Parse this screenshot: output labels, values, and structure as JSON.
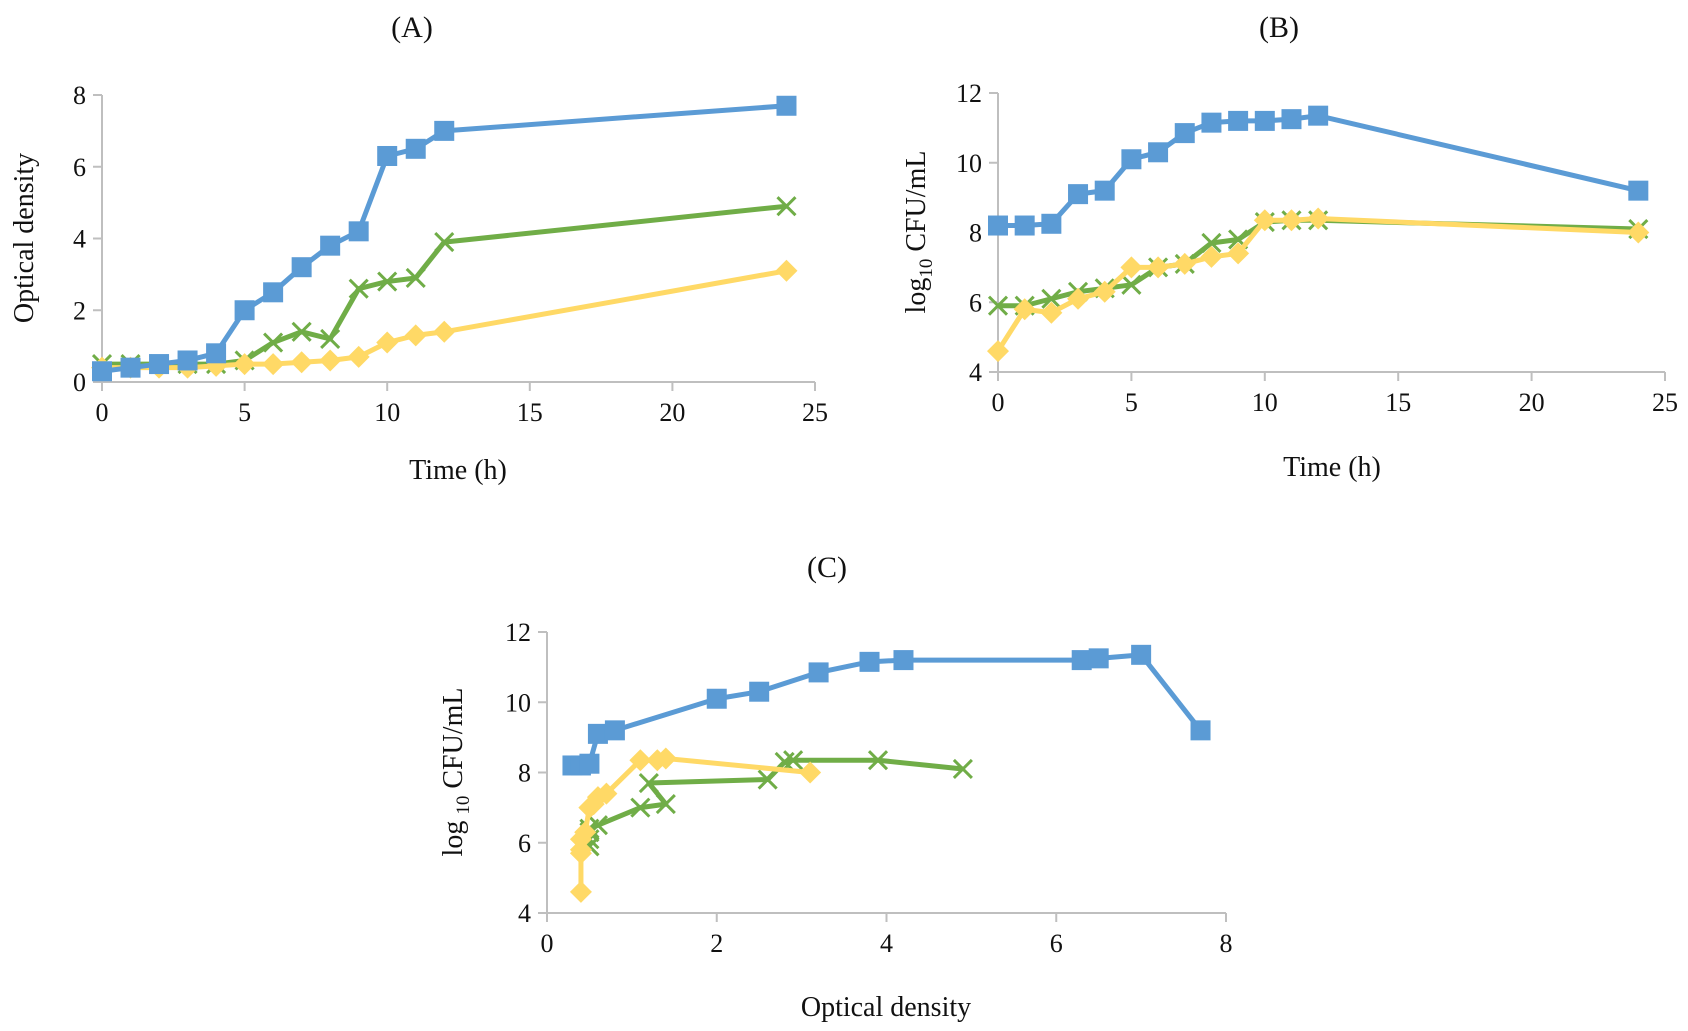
{
  "chart_data": [
    {
      "id": "A",
      "type": "line",
      "title": "(A)",
      "xlabel": "Time (h)",
      "ylabel": "Optical density",
      "ylabel_sub": "",
      "xlim": [
        0,
        25
      ],
      "ylim": [
        0,
        8
      ],
      "xticks": [
        "0",
        "5",
        "10",
        "15",
        "20",
        "25"
      ],
      "xtick_values": [
        0,
        5,
        10,
        15,
        20,
        25
      ],
      "yticks": [
        "0",
        "2",
        "4",
        "6",
        "8"
      ],
      "ytick_values": [
        0,
        2,
        4,
        6,
        8
      ],
      "grid": false,
      "series": [
        {
          "name": "series-blue-square",
          "color": "#5b9bd5",
          "marker": "square",
          "x": [
            0,
            1,
            2,
            3,
            4,
            5,
            6,
            7,
            8,
            9,
            10,
            11,
            12,
            24
          ],
          "y": [
            0.3,
            0.4,
            0.5,
            0.6,
            0.8,
            2.0,
            2.5,
            3.2,
            3.8,
            4.2,
            6.3,
            6.5,
            7.0,
            7.7
          ]
        },
        {
          "name": "series-green-x",
          "color": "#70ad47",
          "marker": "x",
          "x": [
            0,
            1,
            2,
            3,
            4,
            5,
            6,
            7,
            8,
            9,
            10,
            11,
            12,
            24
          ],
          "y": [
            0.5,
            0.5,
            0.5,
            0.5,
            0.5,
            0.6,
            1.1,
            1.4,
            1.2,
            2.6,
            2.8,
            2.9,
            3.9,
            4.9
          ]
        },
        {
          "name": "series-yellow-diamond",
          "color": "#ffd966",
          "marker": "diamond",
          "x": [
            0,
            1,
            2,
            3,
            4,
            5,
            6,
            7,
            8,
            9,
            10,
            11,
            12,
            24
          ],
          "y": [
            0.4,
            0.4,
            0.4,
            0.4,
            0.45,
            0.5,
            0.5,
            0.55,
            0.6,
            0.7,
            1.1,
            1.3,
            1.4,
            3.1
          ]
        }
      ]
    },
    {
      "id": "B",
      "type": "line",
      "title": "(B)",
      "xlabel": "Time (h)",
      "ylabel": "log",
      "ylabel_sub": "10",
      "ylabel_rest": " CFU/mL",
      "xlim": [
        0,
        25
      ],
      "ylim": [
        4,
        12
      ],
      "xticks": [
        "0",
        "5",
        "10",
        "15",
        "20",
        "25"
      ],
      "xtick_values": [
        0,
        5,
        10,
        15,
        20,
        25
      ],
      "yticks": [
        "4",
        "6",
        "8",
        "10",
        "12"
      ],
      "ytick_values": [
        4,
        6,
        8,
        10,
        12
      ],
      "grid": false,
      "series": [
        {
          "name": "series-blue-square",
          "color": "#5b9bd5",
          "marker": "square",
          "x": [
            0,
            1,
            2,
            3,
            4,
            5,
            6,
            7,
            8,
            9,
            10,
            11,
            12,
            24
          ],
          "y": [
            8.2,
            8.2,
            8.25,
            9.1,
            9.2,
            10.1,
            10.3,
            10.85,
            11.15,
            11.2,
            11.2,
            11.25,
            11.35,
            9.2
          ]
        },
        {
          "name": "series-green-x",
          "color": "#70ad47",
          "marker": "x",
          "x": [
            0,
            1,
            2,
            3,
            4,
            5,
            6,
            7,
            8,
            9,
            10,
            11,
            12,
            24
          ],
          "y": [
            5.9,
            5.9,
            6.1,
            6.3,
            6.4,
            6.5,
            7.0,
            7.1,
            7.7,
            7.8,
            8.3,
            8.35,
            8.35,
            8.1
          ]
        },
        {
          "name": "series-yellow-diamond",
          "color": "#ffd966",
          "marker": "diamond",
          "x": [
            0,
            1,
            2,
            3,
            4,
            5,
            6,
            7,
            8,
            9,
            10,
            11,
            12,
            24
          ],
          "y": [
            4.6,
            5.8,
            5.7,
            6.1,
            6.3,
            7.0,
            7.0,
            7.1,
            7.3,
            7.4,
            8.35,
            8.35,
            8.4,
            8.0
          ]
        }
      ]
    },
    {
      "id": "C",
      "type": "line",
      "title": "(C)",
      "xlabel": "Optical density",
      "ylabel": "log",
      "ylabel_sub": "10",
      "ylabel_rest": " CFU/mL",
      "xlim": [
        0,
        8
      ],
      "ylim": [
        4,
        12
      ],
      "xticks": [
        "0",
        "2",
        "4",
        "6",
        "8"
      ],
      "xtick_values": [
        0,
        2,
        4,
        6,
        8
      ],
      "yticks": [
        "4",
        "6",
        "8",
        "10",
        "12"
      ],
      "ytick_values": [
        4,
        6,
        8,
        10,
        12
      ],
      "grid": false,
      "series": [
        {
          "name": "series-blue-square",
          "color": "#5b9bd5",
          "marker": "square",
          "x": [
            0.3,
            0.4,
            0.5,
            0.6,
            0.8,
            2.0,
            2.5,
            3.2,
            3.8,
            4.2,
            6.3,
            6.5,
            7.0,
            7.7
          ],
          "y": [
            8.2,
            8.2,
            8.25,
            9.1,
            9.2,
            10.1,
            10.3,
            10.85,
            11.15,
            11.2,
            11.2,
            11.25,
            11.35,
            9.2
          ]
        },
        {
          "name": "series-green-x",
          "color": "#70ad47",
          "marker": "x",
          "x": [
            0.5,
            0.5,
            0.5,
            0.5,
            0.5,
            0.6,
            1.1,
            1.4,
            1.2,
            2.6,
            2.8,
            2.9,
            3.9,
            4.9
          ],
          "y": [
            5.9,
            5.9,
            6.1,
            6.3,
            6.4,
            6.5,
            7.0,
            7.1,
            7.7,
            7.8,
            8.3,
            8.35,
            8.35,
            8.1
          ]
        },
        {
          "name": "series-yellow-diamond",
          "color": "#ffd966",
          "marker": "diamond",
          "x": [
            0.4,
            0.4,
            0.4,
            0.4,
            0.45,
            0.5,
            0.5,
            0.55,
            0.6,
            0.7,
            1.1,
            1.3,
            1.4,
            3.1
          ],
          "y": [
            4.6,
            5.8,
            5.7,
            6.1,
            6.3,
            7.0,
            7.0,
            7.1,
            7.3,
            7.4,
            8.35,
            8.35,
            8.4,
            8.0
          ]
        }
      ]
    }
  ]
}
